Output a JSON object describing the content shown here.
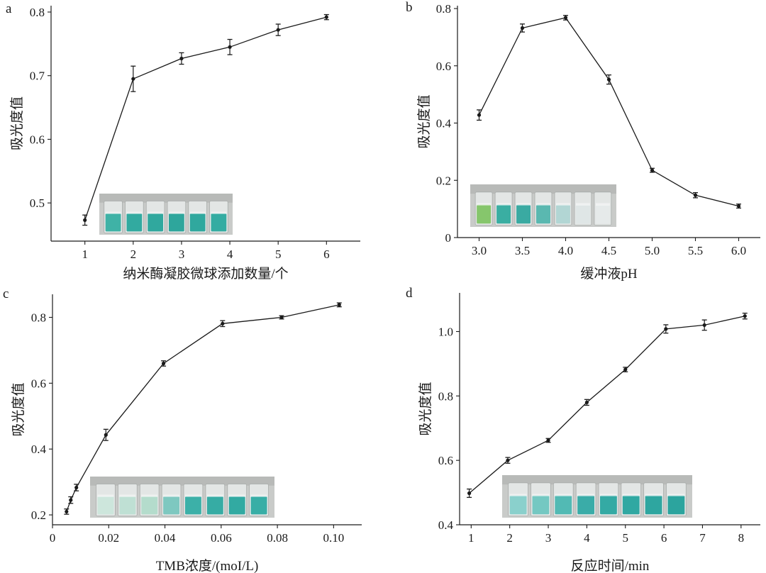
{
  "figure": {
    "background": "#ffffff",
    "line_color": "#1a1a1a"
  },
  "chart_data": [
    {
      "id": "a",
      "type": "line",
      "panel_label": "a",
      "title": "",
      "xlabel": "纳米酶凝胶微球添加数量/个",
      "ylabel": "吸光度值",
      "xlim": [
        0.3,
        6.7
      ],
      "ylim": [
        0.44,
        0.81
      ],
      "xticks": [
        1,
        2,
        3,
        4,
        5,
        6
      ],
      "xtick_labels": [
        "1",
        "2",
        "3",
        "4",
        "5",
        "6"
      ],
      "yticks": [
        0.5,
        0.6,
        0.7,
        0.8
      ],
      "ytick_labels": [
        "0.5",
        "0.6",
        "0.7",
        "0.8"
      ],
      "x": [
        1,
        2,
        3,
        4,
        5,
        6
      ],
      "values": [
        0.473,
        0.695,
        0.727,
        0.745,
        0.772,
        0.792
      ],
      "errors": [
        0.008,
        0.02,
        0.009,
        0.012,
        0.009,
        0.004
      ],
      "inset_swatches": [
        "#3fb2a6",
        "#32aaa0",
        "#30a89e",
        "#2ea69c",
        "#30a89e",
        "#34aca2"
      ]
    },
    {
      "id": "b",
      "type": "line",
      "panel_label": "b",
      "title": "",
      "xlabel": "缓冲液pH",
      "ylabel": "吸光度值",
      "xlim": [
        2.75,
        6.25
      ],
      "ylim": [
        0,
        0.81
      ],
      "xticks": [
        3.0,
        3.5,
        4.0,
        4.5,
        5.0,
        5.5,
        6.0
      ],
      "xtick_labels": [
        "3.0",
        "3.5",
        "4.0",
        "4.5",
        "5.0",
        "5.5",
        "6.0"
      ],
      "yticks": [
        0,
        0.2,
        0.4,
        0.6,
        0.8
      ],
      "ytick_labels": [
        "0",
        "0.2",
        "0.4",
        "0.6",
        "0.8"
      ],
      "x": [
        3.0,
        3.5,
        4.0,
        4.5,
        5.0,
        5.5,
        6.0
      ],
      "values": [
        0.428,
        0.732,
        0.768,
        0.552,
        0.235,
        0.148,
        0.11
      ],
      "errors": [
        0.018,
        0.014,
        0.008,
        0.016,
        0.007,
        0.009,
        0.007
      ],
      "inset_swatches": [
        "#86c66c",
        "#3aaea2",
        "#3aaaa2",
        "#5ab8b0",
        "#b2d6d4",
        "#dfe6e6",
        "#e6eaea"
      ]
    },
    {
      "id": "c",
      "type": "line",
      "panel_label": "c",
      "title": "",
      "xlabel": "TMB浓度/(moI/L)",
      "ylabel": "吸光度值",
      "xlim": [
        0,
        0.11
      ],
      "ylim": [
        0.17,
        0.87
      ],
      "xticks": [
        0,
        0.02,
        0.04,
        0.06,
        0.08,
        0.1
      ],
      "xtick_labels": [
        "0",
        "0.02",
        "0.04",
        "0.06",
        "0.08",
        "0.10"
      ],
      "yticks": [
        0.2,
        0.4,
        0.6,
        0.8
      ],
      "ytick_labels": [
        "0.2",
        "0.4",
        "0.6",
        "0.8"
      ],
      "x": [
        0.005,
        0.0065,
        0.0085,
        0.019,
        0.0395,
        0.0605,
        0.0815,
        0.102
      ],
      "values": [
        0.21,
        0.245,
        0.283,
        0.443,
        0.66,
        0.781,
        0.8,
        0.838
      ],
      "errors": [
        0.008,
        0.01,
        0.01,
        0.017,
        0.008,
        0.009,
        0.005,
        0.006
      ],
      "inset_swatches": [
        "#cde6dc",
        "#bfe0d4",
        "#b4dccc",
        "#7ec8c0",
        "#3cb0a8",
        "#36aca4",
        "#32aaa2",
        "#38aea6"
      ]
    },
    {
      "id": "d",
      "type": "line",
      "panel_label": "d",
      "title": "",
      "xlabel": "反应时间/min",
      "ylabel": "吸光度值",
      "xlim": [
        0.7,
        8.5
      ],
      "ylim": [
        0.4,
        1.12
      ],
      "xticks": [
        1,
        2,
        3,
        4,
        5,
        6,
        7,
        8
      ],
      "xtick_labels": [
        "1",
        "2",
        "3",
        "4",
        "5",
        "6",
        "7",
        "8"
      ],
      "yticks": [
        0.4,
        0.6,
        0.8,
        1.0
      ],
      "ytick_labels": [
        "0.4",
        "0.6",
        "0.8",
        "1.0"
      ],
      "x": [
        0.95,
        1.95,
        3.0,
        4.0,
        5.0,
        6.05,
        7.05,
        8.1
      ],
      "values": [
        0.498,
        0.6,
        0.662,
        0.78,
        0.882,
        1.008,
        1.02,
        1.048
      ],
      "errors": [
        0.013,
        0.009,
        0.006,
        0.009,
        0.007,
        0.013,
        0.016,
        0.009
      ],
      "inset_swatches": [
        "#8ad0cc",
        "#74c8c2",
        "#52bab4",
        "#3aaca8",
        "#34aaa4",
        "#30a8a2",
        "#2ea6a0",
        "#2ca49e"
      ]
    }
  ]
}
